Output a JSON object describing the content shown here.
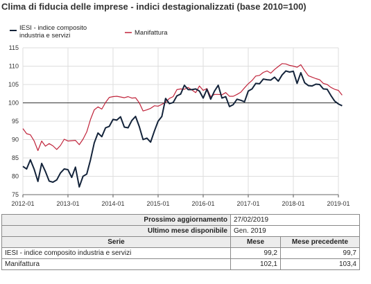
{
  "title": "Clima di fiducia delle imprese - indici destagionalizzati (base 2010=100)",
  "colors": {
    "iesi": "#13233a",
    "manifattura": "#c0233a",
    "reference": "#333333",
    "grid": "#dddddd"
  },
  "chart_data": {
    "type": "line",
    "title": "Clima di fiducia delle imprese - indici destagionalizzati (base 2010=100)",
    "xlabel": "",
    "ylabel": "",
    "xlim": [
      "2012-01",
      "2019-01"
    ],
    "ylim": [
      75,
      115
    ],
    "yticks": [
      75,
      80,
      85,
      90,
      95,
      100,
      105,
      110,
      115
    ],
    "xticks": [
      "2012-01",
      "2013-01",
      "2014-01",
      "2015-01",
      "2016-01",
      "2017-01",
      "2018-01",
      "2019-01"
    ],
    "reference_line": 100,
    "grid": true,
    "legend_position": "top",
    "series": [
      {
        "name": "IESI - indice composito industria e servizi",
        "x_start": "2012-01",
        "values": [
          82.7,
          82.0,
          84.5,
          81.9,
          78.6,
          83.5,
          81.3,
          78.7,
          78.4,
          79.0,
          80.9,
          82.0,
          81.8,
          79.7,
          82.5,
          77.1,
          80.0,
          80.6,
          84.5,
          89.1,
          91.8,
          90.8,
          93.2,
          93.6,
          95.5,
          95.3,
          96.2,
          93.4,
          93.2,
          95.2,
          96.3,
          93.5,
          90.0,
          90.4,
          89.3,
          92.3,
          95.0,
          96.3,
          101.2,
          99.8,
          100.1,
          101.9,
          102.4,
          104.8,
          103.6,
          103.6,
          103.8,
          103.2,
          101.3,
          103.7,
          101.0,
          103.2,
          104.8,
          101.3,
          101.7,
          99.0,
          99.5,
          101.0,
          100.7,
          100.3,
          103.2,
          103.8,
          105.3,
          105.2,
          106.5,
          106.3,
          106.2,
          107.0,
          105.9,
          107.6,
          108.7,
          108.4,
          108.6,
          105.3,
          108.2,
          105.5,
          104.7,
          104.6,
          105.1,
          105.0,
          103.8,
          103.7,
          102.0,
          100.5,
          99.7,
          99.2
        ]
      },
      {
        "name": "Manifattura",
        "x_start": "2012-01",
        "values": [
          93.0,
          91.6,
          91.3,
          89.6,
          87.0,
          89.6,
          88.2,
          88.9,
          88.3,
          87.3,
          88.4,
          90.1,
          89.6,
          89.7,
          89.8,
          88.6,
          90.1,
          92.1,
          95.5,
          98.1,
          98.9,
          98.3,
          100.1,
          101.5,
          101.7,
          101.8,
          101.6,
          101.4,
          101.7,
          101.3,
          101.4,
          100.0,
          97.8,
          98.1,
          98.5,
          99.2,
          99.1,
          99.6,
          100.2,
          101.2,
          101.7,
          103.6,
          103.8,
          103.7,
          104.2,
          103.5,
          102.8,
          104.6,
          103.4,
          103.9,
          101.7,
          102.3,
          102.3,
          102.2,
          102.8,
          101.8,
          101.8,
          102.3,
          102.9,
          104.1,
          105.2,
          106.1,
          107.3,
          107.5,
          108.3,
          108.7,
          108.1,
          109.1,
          109.9,
          110.7,
          110.6,
          110.2,
          110.0,
          109.7,
          110.4,
          108.8,
          107.4,
          107.0,
          106.6,
          106.3,
          105.3,
          105.0,
          104.2,
          103.7,
          103.4,
          102.1
        ]
      }
    ]
  },
  "table": {
    "next_update_label": "Prossimo aggiornamento",
    "next_update_value": "27/02/2019",
    "last_month_label": "Ultimo mese disponibile",
    "last_month_value": "Gen. 2019",
    "headers": {
      "serie": "Serie",
      "mese": "Mese",
      "precedente": "Mese precedente"
    },
    "rows": [
      {
        "serie": "IESI - indice composito industria e servizi",
        "mese": "99,2",
        "precedente": "99,7"
      },
      {
        "serie": "Manifattura",
        "mese": "102,1",
        "precedente": "103,4"
      }
    ]
  }
}
